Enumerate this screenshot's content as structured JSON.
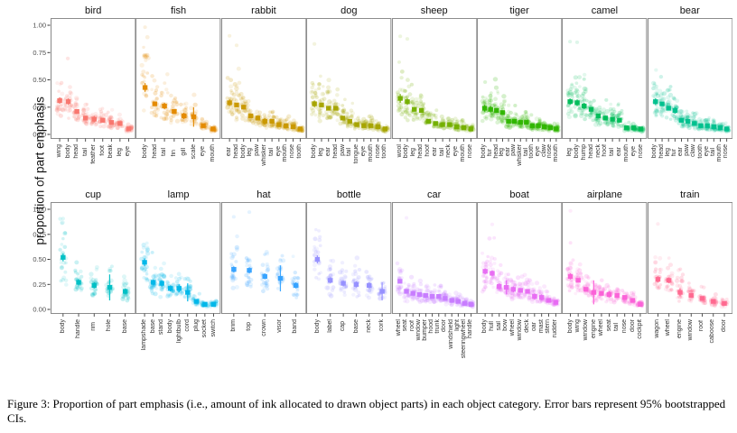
{
  "figure": {
    "ylabel": "proportion of part emphasis",
    "ytick_labels": [
      "0.00",
      "0.25",
      "0.50",
      "0.75",
      "1.00"
    ],
    "caption": "Figure 3: Proportion of part emphasis (i.e., amount of ink allocated to drawn object parts) in each object category. Error bars represent 95% bootstrapped CIs."
  },
  "chart_data": {
    "type": "scatter",
    "ylabel": "proportion of part emphasis",
    "ylim": [
      0,
      1
    ],
    "yticks": [
      0,
      0.25,
      0.5,
      0.75,
      1.0
    ],
    "grid": false,
    "legend": "none",
    "panels_per_row": 8,
    "panels": [
      {
        "category": "bird",
        "color": "#F8766D",
        "parts": [
          "wing",
          "body",
          "head",
          "tail",
          "feather",
          "foot",
          "beak",
          "leg",
          "eye"
        ],
        "means": [
          0.31,
          0.3,
          0.21,
          0.15,
          0.14,
          0.13,
          0.11,
          0.1,
          0.05
        ],
        "ci": [
          0.03,
          0.03,
          0.02,
          0.02,
          0.03,
          0.02,
          0.02,
          0.02,
          0.01
        ]
      },
      {
        "category": "fish",
        "color": "#E38900",
        "parts": [
          "body",
          "head",
          "tail",
          "fin",
          "gill",
          "scale",
          "eye",
          "mouth"
        ],
        "means": [
          0.43,
          0.28,
          0.26,
          0.21,
          0.17,
          0.16,
          0.08,
          0.05
        ],
        "ci": [
          0.04,
          0.02,
          0.03,
          0.02,
          0.03,
          0.09,
          0.02,
          0.01
        ]
      },
      {
        "category": "rabbit",
        "color": "#C99800",
        "parts": [
          "ear",
          "head",
          "body",
          "leg",
          "paw",
          "whisker",
          "tail",
          "eye",
          "mouth",
          "nose",
          "tooth"
        ],
        "means": [
          0.29,
          0.27,
          0.25,
          0.17,
          0.15,
          0.12,
          0.12,
          0.09,
          0.08,
          0.07,
          0.05
        ],
        "ci": [
          0.03,
          0.02,
          0.02,
          0.02,
          0.02,
          0.03,
          0.02,
          0.01,
          0.02,
          0.01,
          0.02
        ]
      },
      {
        "category": "dog",
        "color": "#A6A400",
        "parts": [
          "body",
          "leg",
          "ear",
          "head",
          "paw",
          "tail",
          "tongue",
          "eye",
          "mouth",
          "nose",
          "tooth"
        ],
        "means": [
          0.28,
          0.27,
          0.24,
          0.24,
          0.15,
          0.12,
          0.09,
          0.08,
          0.08,
          0.07,
          0.05
        ],
        "ci": [
          0.03,
          0.02,
          0.02,
          0.02,
          0.02,
          0.02,
          0.02,
          0.01,
          0.01,
          0.01,
          0.01
        ]
      },
      {
        "category": "sheep",
        "color": "#74AF00",
        "parts": [
          "wool",
          "body",
          "leg",
          "head",
          "hoof",
          "ear",
          "tail",
          "neck",
          "eye",
          "mouth",
          "nose"
        ],
        "means": [
          0.33,
          0.3,
          0.23,
          0.22,
          0.12,
          0.1,
          0.09,
          0.09,
          0.07,
          0.06,
          0.05
        ],
        "ci": [
          0.04,
          0.03,
          0.02,
          0.02,
          0.02,
          0.02,
          0.02,
          0.02,
          0.01,
          0.01,
          0.01
        ]
      },
      {
        "category": "tiger",
        "color": "#2FB600",
        "parts": [
          "body",
          "fur",
          "head",
          "leg",
          "ear",
          "paw",
          "whisker",
          "tail",
          "tooth",
          "eye",
          "claw",
          "nose",
          "mouth"
        ],
        "means": [
          0.24,
          0.23,
          0.22,
          0.2,
          0.12,
          0.12,
          0.11,
          0.11,
          0.08,
          0.08,
          0.07,
          0.06,
          0.05
        ],
        "ci": [
          0.03,
          0.03,
          0.02,
          0.02,
          0.01,
          0.02,
          0.02,
          0.02,
          0.01,
          0.01,
          0.01,
          0.01,
          0.01
        ]
      },
      {
        "category": "camel",
        "color": "#00BC59",
        "parts": [
          "leg",
          "body",
          "hump",
          "head",
          "neck",
          "hoof",
          "tail",
          "ear",
          "mouth",
          "eye",
          "nose"
        ],
        "means": [
          0.3,
          0.29,
          0.26,
          0.23,
          0.17,
          0.15,
          0.14,
          0.13,
          0.06,
          0.06,
          0.05
        ],
        "ci": [
          0.03,
          0.03,
          0.03,
          0.02,
          0.02,
          0.02,
          0.02,
          0.02,
          0.01,
          0.01,
          0.01
        ]
      },
      {
        "category": "bear",
        "color": "#00C08D",
        "parts": [
          "body",
          "head",
          "leg",
          "fur",
          "ear",
          "paw",
          "claw",
          "tooth",
          "eye",
          "tail",
          "mouth",
          "nose"
        ],
        "means": [
          0.3,
          0.28,
          0.24,
          0.22,
          0.13,
          0.12,
          0.1,
          0.08,
          0.08,
          0.07,
          0.06,
          0.05
        ],
        "ci": [
          0.03,
          0.02,
          0.02,
          0.03,
          0.02,
          0.02,
          0.02,
          0.01,
          0.01,
          0.01,
          0.01,
          0.01
        ]
      },
      {
        "category": "cup",
        "color": "#00BFC4",
        "parts": [
          "body",
          "handle",
          "rim",
          "hole",
          "base"
        ],
        "means": [
          0.52,
          0.27,
          0.24,
          0.22,
          0.18
        ],
        "ci": [
          0.04,
          0.03,
          0.03,
          0.13,
          0.03
        ]
      },
      {
        "category": "lamp",
        "color": "#00B7E8",
        "parts": [
          "lampshade",
          "base",
          "stand",
          "body",
          "lightbulb",
          "cord",
          "plug",
          "socket",
          "switch"
        ],
        "means": [
          0.47,
          0.27,
          0.26,
          0.21,
          0.21,
          0.17,
          0.08,
          0.05,
          0.05
        ],
        "ci": [
          0.04,
          0.03,
          0.03,
          0.03,
          0.04,
          0.09,
          0.02,
          0.01,
          0.01
        ]
      },
      {
        "category": "hat",
        "color": "#35A2FF",
        "parts": [
          "brim",
          "top",
          "crown",
          "visor",
          "band"
        ],
        "means": [
          0.4,
          0.39,
          0.33,
          0.31,
          0.24
        ],
        "ci": [
          0.03,
          0.03,
          0.03,
          0.13,
          0.03
        ]
      },
      {
        "category": "bottle",
        "color": "#9590FF",
        "parts": [
          "body",
          "label",
          "cap",
          "base",
          "neck",
          "cork"
        ],
        "means": [
          0.5,
          0.29,
          0.26,
          0.25,
          0.24,
          0.18
        ],
        "ci": [
          0.04,
          0.03,
          0.03,
          0.03,
          0.03,
          0.09
        ]
      },
      {
        "category": "car",
        "color": "#C77CFF",
        "parts": [
          "wheel",
          "seat",
          "roof",
          "window",
          "bumper",
          "hood",
          "trunk",
          "door",
          "windshield",
          "light",
          "steeringwheel",
          "handle"
        ],
        "means": [
          0.28,
          0.18,
          0.16,
          0.15,
          0.14,
          0.13,
          0.13,
          0.11,
          0.09,
          0.08,
          0.06,
          0.05
        ],
        "ci": [
          0.02,
          0.02,
          0.02,
          0.01,
          0.02,
          0.02,
          0.02,
          0.01,
          0.01,
          0.01,
          0.01,
          0.01
        ]
      },
      {
        "category": "boat",
        "color": "#E76BF3",
        "parts": [
          "body",
          "hull",
          "sail",
          "bow",
          "wheel",
          "window",
          "deck",
          "oar",
          "mast",
          "stern",
          "rudder"
        ],
        "means": [
          0.38,
          0.36,
          0.23,
          0.22,
          0.2,
          0.19,
          0.18,
          0.13,
          0.12,
          0.09,
          0.07
        ],
        "ci": [
          0.03,
          0.03,
          0.03,
          0.07,
          0.03,
          0.02,
          0.02,
          0.03,
          0.03,
          0.02,
          0.02
        ]
      },
      {
        "category": "airplane",
        "color": "#FB61D7",
        "parts": [
          "body",
          "wing",
          "window",
          "engine",
          "wheel",
          "seat",
          "tail",
          "nose",
          "door",
          "cockpit"
        ],
        "means": [
          0.33,
          0.29,
          0.2,
          0.17,
          0.16,
          0.15,
          0.14,
          0.12,
          0.09,
          0.05
        ],
        "ci": [
          0.03,
          0.02,
          0.02,
          0.12,
          0.02,
          0.03,
          0.02,
          0.02,
          0.02,
          0.01
        ]
      },
      {
        "category": "train",
        "color": "#FF6890",
        "parts": [
          "wagon",
          "wheel",
          "engine",
          "window",
          "roof",
          "caboose",
          "door"
        ],
        "means": [
          0.3,
          0.29,
          0.17,
          0.14,
          0.11,
          0.08,
          0.06
        ],
        "ci": [
          0.03,
          0.03,
          0.04,
          0.02,
          0.02,
          0.02,
          0.01
        ]
      }
    ]
  }
}
